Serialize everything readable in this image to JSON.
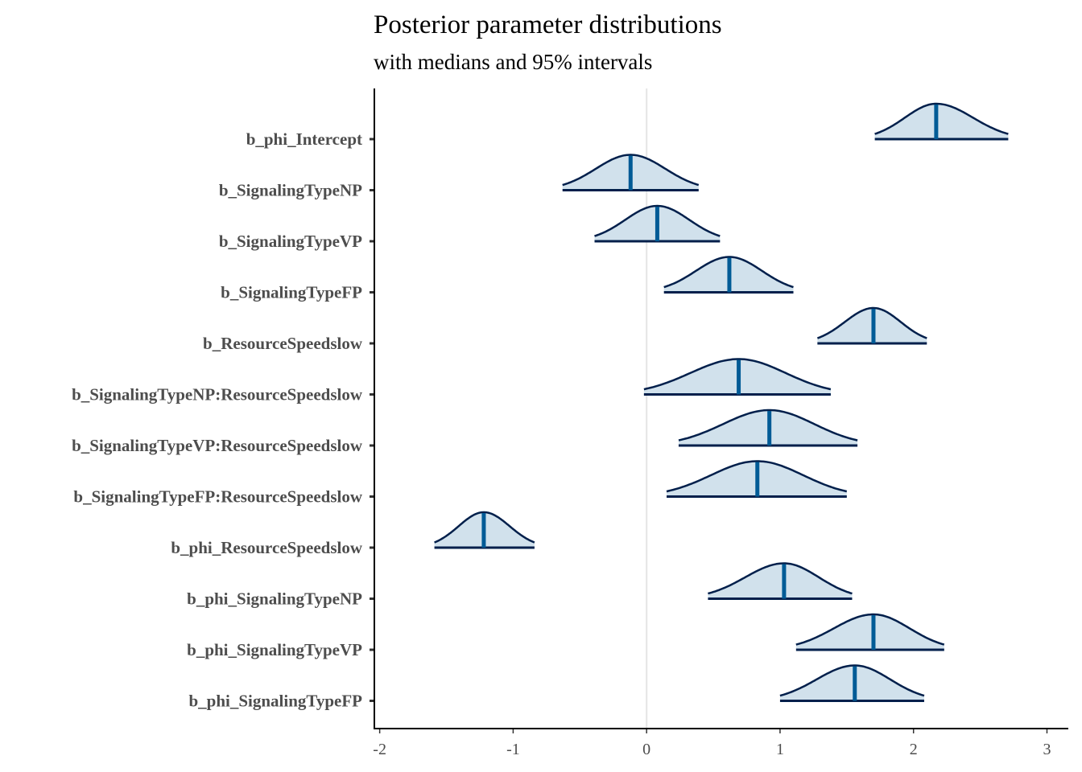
{
  "chart_data": {
    "type": "ridgeline",
    "title": "Posterior parameter distributions",
    "subtitle": "with medians and 95% intervals",
    "xlabel": "",
    "ylabel": "",
    "xlim": [
      -2.04,
      3.16
    ],
    "x_ticks": [
      -2,
      -1,
      0,
      1,
      2,
      3
    ],
    "x_tick_labels": [
      "-2",
      "-1",
      "0",
      "1",
      "2",
      "3"
    ],
    "reference_line": 0,
    "grid": false,
    "series": [
      {
        "name": "b_phi_Intercept",
        "median": 2.17,
        "lower": 1.71,
        "upper": 2.71
      },
      {
        "name": "b_SignalingTypeNP",
        "median": -0.12,
        "lower": -0.63,
        "upper": 0.39
      },
      {
        "name": "b_SignalingTypeVP",
        "median": 0.08,
        "lower": -0.39,
        "upper": 0.55
      },
      {
        "name": "b_SignalingTypeFP",
        "median": 0.62,
        "lower": 0.13,
        "upper": 1.1
      },
      {
        "name": "b_ResourceSpeedslow",
        "median": 1.7,
        "lower": 1.28,
        "upper": 2.1
      },
      {
        "name": "b_SignalingTypeNP:ResourceSpeedslow",
        "median": 0.69,
        "lower": -0.02,
        "upper": 1.38
      },
      {
        "name": "b_SignalingTypeVP:ResourceSpeedslow",
        "median": 0.92,
        "lower": 0.24,
        "upper": 1.58
      },
      {
        "name": "b_SignalingTypeFP:ResourceSpeedslow",
        "median": 0.83,
        "lower": 0.15,
        "upper": 1.5
      },
      {
        "name": "b_phi_ResourceSpeedslow",
        "median": -1.22,
        "lower": -1.59,
        "upper": -0.84
      },
      {
        "name": "b_phi_SignalingTypeNP",
        "median": 1.03,
        "lower": 0.46,
        "upper": 1.54
      },
      {
        "name": "b_phi_SignalingTypeVP",
        "median": 1.7,
        "lower": 1.12,
        "upper": 2.23
      },
      {
        "name": "b_phi_SignalingTypeFP",
        "median": 1.56,
        "lower": 1.0,
        "upper": 2.08
      }
    ],
    "colors": {
      "fill": "#D1E1EC",
      "outline": "#011F4B",
      "median": "#005B96",
      "zero_line": "#E5E5E5",
      "axis": "#000000",
      "label": "#4D4D4D"
    }
  }
}
